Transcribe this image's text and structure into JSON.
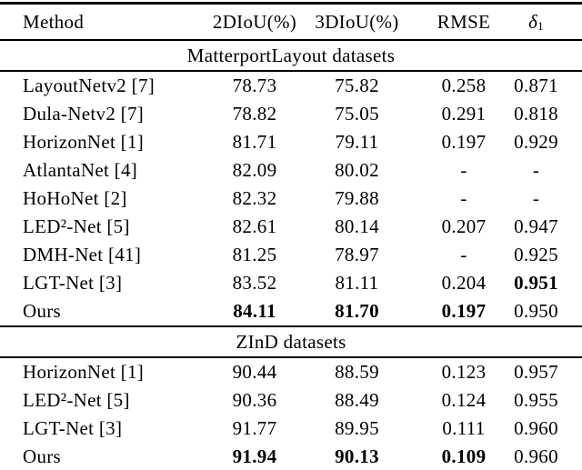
{
  "table": {
    "columns": [
      {
        "label": "Method"
      },
      {
        "label": "2DIoU(%)"
      },
      {
        "label": "3DIoU(%)"
      },
      {
        "label": "RMSE"
      },
      {
        "symbol": "δ",
        "sub": "1"
      }
    ],
    "sections": [
      {
        "title": "MatterportLayout datasets",
        "rows": [
          {
            "method": "LayoutNetv2 [7]",
            "values": [
              {
                "t": "78.73"
              },
              {
                "t": "75.82"
              },
              {
                "t": "0.258"
              },
              {
                "t": "0.871"
              }
            ]
          },
          {
            "method": "Dula-Netv2 [7]",
            "values": [
              {
                "t": "78.82"
              },
              {
                "t": "75.05"
              },
              {
                "t": "0.291"
              },
              {
                "t": "0.818"
              }
            ]
          },
          {
            "method": "HorizonNet [1]",
            "values": [
              {
                "t": "81.71"
              },
              {
                "t": "79.11"
              },
              {
                "t": "0.197"
              },
              {
                "t": "0.929"
              }
            ]
          },
          {
            "method": "AtlantaNet [4]",
            "values": [
              {
                "t": "82.09"
              },
              {
                "t": "80.02"
              },
              {
                "t": "-"
              },
              {
                "t": "-"
              }
            ]
          },
          {
            "method": "HoHoNet [2]",
            "values": [
              {
                "t": "82.32"
              },
              {
                "t": "79.88"
              },
              {
                "t": "-"
              },
              {
                "t": "-"
              }
            ]
          },
          {
            "method": "LED²-Net [5]",
            "values": [
              {
                "t": "82.61"
              },
              {
                "t": "80.14"
              },
              {
                "t": "0.207"
              },
              {
                "t": "0.947"
              }
            ]
          },
          {
            "method": "DMH-Net [41]",
            "values": [
              {
                "t": "81.25"
              },
              {
                "t": "78.97"
              },
              {
                "t": "-"
              },
              {
                "t": "0.925"
              }
            ]
          },
          {
            "method": "LGT-Net [3]",
            "values": [
              {
                "t": "83.52"
              },
              {
                "t": "81.11"
              },
              {
                "t": "0.204"
              },
              {
                "t": "0.951",
                "b": true
              }
            ]
          },
          {
            "method": "Ours",
            "values": [
              {
                "t": "84.11",
                "b": true
              },
              {
                "t": "81.70",
                "b": true
              },
              {
                "t": "0.197",
                "b": true
              },
              {
                "t": "0.950"
              }
            ]
          }
        ]
      },
      {
        "title": "ZInD datasets",
        "rows": [
          {
            "method": "HorizonNet [1]",
            "values": [
              {
                "t": "90.44"
              },
              {
                "t": "88.59"
              },
              {
                "t": "0.123"
              },
              {
                "t": "0.957"
              }
            ]
          },
          {
            "method": "LED²-Net [5]",
            "values": [
              {
                "t": "90.36"
              },
              {
                "t": "88.49"
              },
              {
                "t": "0.124"
              },
              {
                "t": "0.955"
              }
            ]
          },
          {
            "method": "LGT-Net [3]",
            "values": [
              {
                "t": "91.77"
              },
              {
                "t": "89.95"
              },
              {
                "t": "0.111"
              },
              {
                "t": "0.960"
              }
            ]
          },
          {
            "method": "Ours",
            "values": [
              {
                "t": "91.94",
                "b": true
              },
              {
                "t": "90.13",
                "b": true
              },
              {
                "t": "0.109",
                "b": true
              },
              {
                "t": "0.960"
              }
            ]
          }
        ]
      }
    ]
  }
}
